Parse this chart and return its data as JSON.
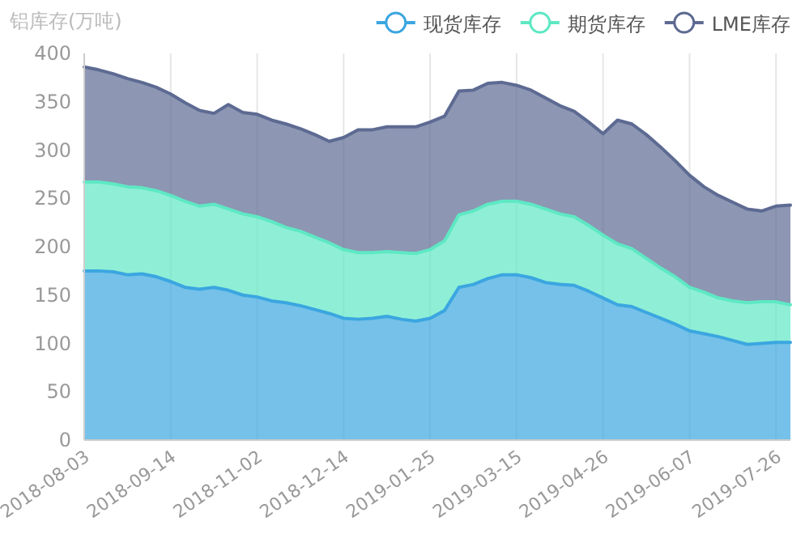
{
  "chart_data": {
    "type": "area",
    "stacked": true,
    "ylabel": "铝库存(万吨)",
    "categories": [
      "2018-08-03",
      null,
      null,
      null,
      null,
      null,
      "2018-09-14",
      null,
      null,
      null,
      null,
      null,
      "2018-11-02",
      null,
      null,
      null,
      null,
      null,
      "2018-12-14",
      null,
      null,
      null,
      null,
      null,
      "2019-01-25",
      null,
      null,
      null,
      null,
      null,
      "2019-03-15",
      null,
      null,
      null,
      null,
      null,
      "2019-04-26",
      null,
      null,
      null,
      null,
      null,
      "2019-06-07",
      null,
      null,
      null,
      null,
      null,
      "2019-07-26",
      null
    ],
    "series": [
      {
        "name": "现货库存",
        "color": "#3ba6e0",
        "values": [
          175,
          175,
          174,
          171,
          172,
          169,
          164,
          158,
          156,
          158,
          155,
          150,
          148,
          144,
          142,
          139,
          135,
          131,
          126,
          125,
          126,
          128,
          125,
          123,
          126,
          134,
          158,
          161,
          167,
          171,
          171,
          168,
          163,
          161,
          160,
          154,
          147,
          140,
          138,
          132,
          126,
          120,
          113,
          110,
          107,
          103,
          99,
          100,
          101,
          101
        ]
      },
      {
        "name": "期货库存",
        "color": "#5ee8c4",
        "values": [
          92,
          92,
          91,
          91,
          89,
          89,
          89,
          89,
          86,
          86,
          84,
          84,
          83,
          82,
          78,
          77,
          75,
          73,
          71,
          69,
          68,
          67,
          69,
          70,
          71,
          72,
          75,
          76,
          77,
          76,
          76,
          76,
          76,
          73,
          71,
          68,
          65,
          63,
          60,
          56,
          52,
          49,
          45,
          43,
          40,
          41,
          43,
          43,
          42,
          39
        ]
      },
      {
        "name": "LME库存",
        "color": "#5d6a92",
        "values": [
          119,
          116,
          114,
          112,
          109,
          107,
          105,
          102,
          99,
          94,
          108,
          105,
          106,
          105,
          107,
          106,
          106,
          105,
          116,
          127,
          127,
          129,
          130,
          131,
          132,
          129,
          128,
          125,
          125,
          123,
          120,
          118,
          115,
          112,
          109,
          107,
          105,
          128,
          129,
          128,
          125,
          120,
          116,
          109,
          106,
          102,
          97,
          94,
          99,
          103
        ]
      }
    ],
    "ylim": [
      0,
      400
    ],
    "yticks": [
      0,
      50,
      100,
      150,
      200,
      250,
      300,
      350,
      400
    ],
    "grid": "x",
    "legend": "top right"
  }
}
